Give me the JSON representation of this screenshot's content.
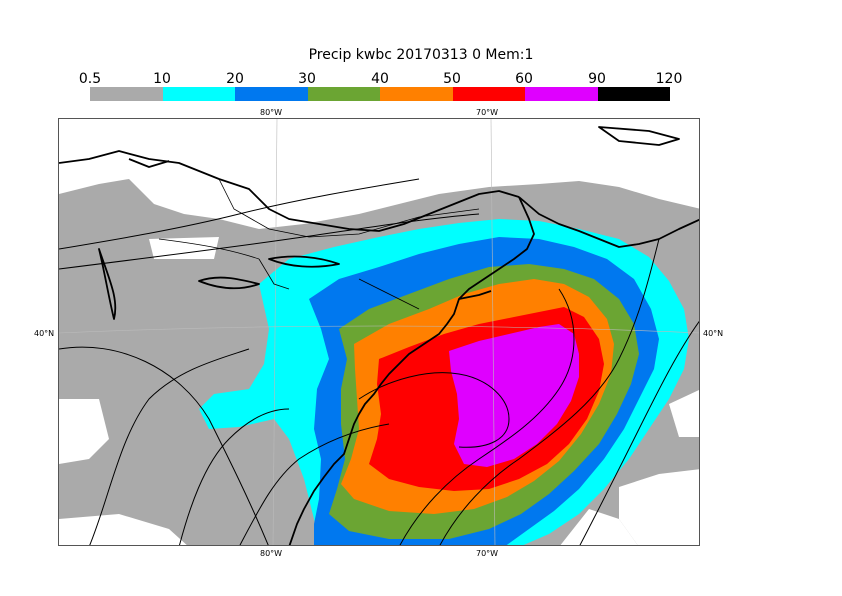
{
  "title": "Precip kwbc 20170313 0 Mem:1",
  "colorbar": {
    "labels": [
      "0.5",
      "10",
      "20",
      "30",
      "40",
      "50",
      "60",
      "90",
      "120"
    ],
    "colors": [
      "#aaaaaa",
      "#00ffff",
      "#0078ef",
      "#6ba533",
      "#ff8000",
      "#ff0000",
      "#df00ff",
      "#000000"
    ]
  },
  "axes": {
    "top_lon": [
      "80°W",
      "70°W"
    ],
    "bottom_lon": [
      "80°W",
      "70°W"
    ],
    "left_lat": "40°N",
    "right_lat": "40°N"
  }
}
